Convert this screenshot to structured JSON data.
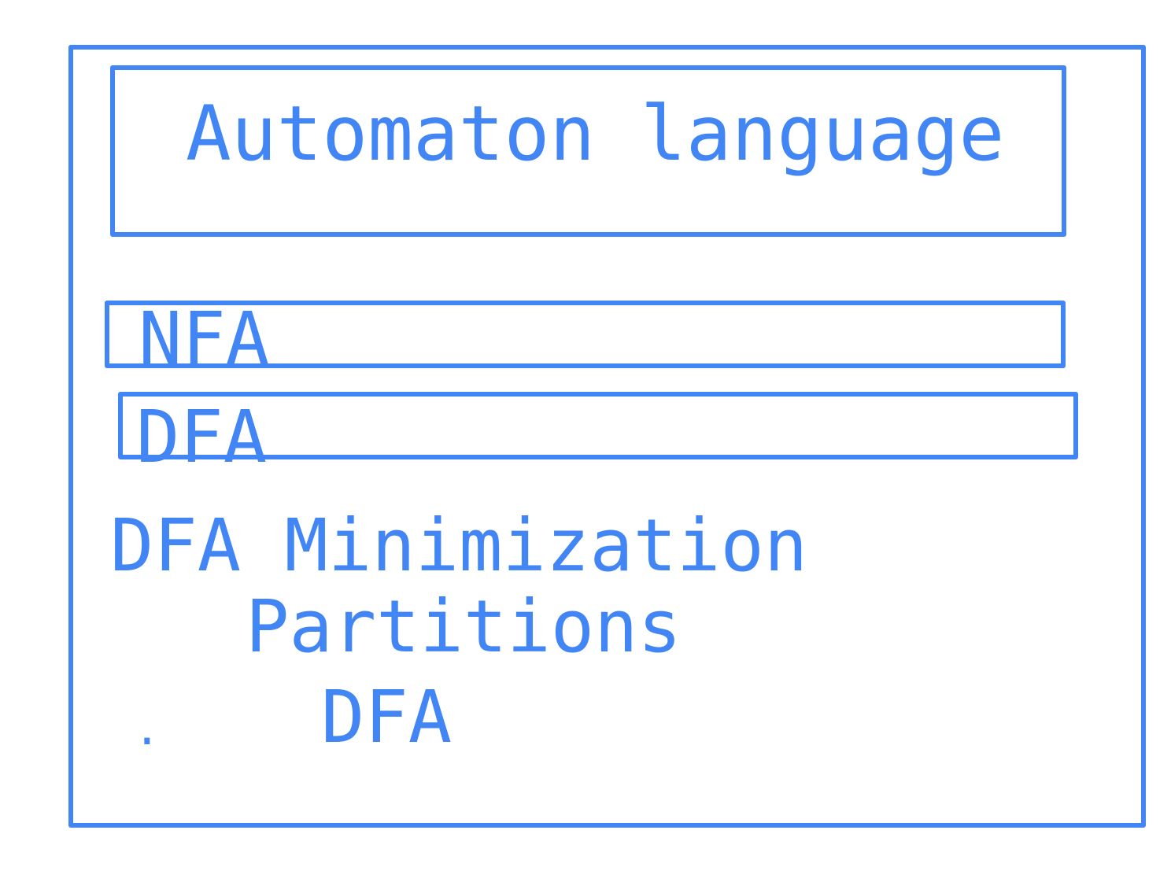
{
  "diagram": {
    "title": "Automaton language",
    "items": [
      {
        "label": "NFA"
      },
      {
        "label": "DFA"
      }
    ],
    "minimization": {
      "heading": "DFA Minimization",
      "partitions": "Partitions",
      "result": "DFA",
      "marker": "."
    }
  },
  "colors": {
    "accent": "#4285f4",
    "background": "#ffffff"
  }
}
